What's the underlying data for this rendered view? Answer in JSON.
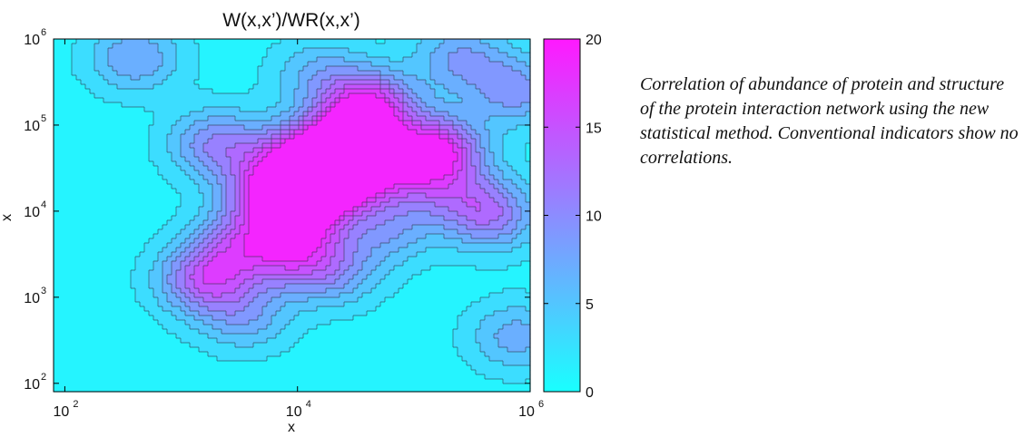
{
  "chart_data": {
    "type": "heatmap",
    "style": "filled contour",
    "title": "W(x,x’)/WR(x,x’)",
    "xlabel": "x",
    "ylabel": "x",
    "x_scale": "log",
    "y_scale": "log",
    "xlim": [
      80,
      1000000
    ],
    "ylim": [
      80,
      1000000
    ],
    "x_ticks": [
      {
        "value": 100,
        "label": "10",
        "exp": "2"
      },
      {
        "value": 10000,
        "label": "10",
        "exp": "4"
      },
      {
        "value": 1000000,
        "label": "10",
        "exp": "6"
      }
    ],
    "y_ticks": [
      {
        "value": 100,
        "label": "10",
        "exp": "2"
      },
      {
        "value": 1000,
        "label": "10",
        "exp": "3"
      },
      {
        "value": 10000,
        "label": "10",
        "exp": "4"
      },
      {
        "value": 100000,
        "label": "10",
        "exp": "5"
      },
      {
        "value": 1000000,
        "label": "10",
        "exp": "6"
      }
    ],
    "colorbar": {
      "range": [
        0,
        20
      ],
      "ticks": [
        {
          "value": 0,
          "label": "0"
        },
        {
          "value": 5,
          "label": "5"
        },
        {
          "value": 10,
          "label": "10"
        },
        {
          "value": 15,
          "label": "15"
        },
        {
          "value": 20,
          "label": "20"
        }
      ],
      "color_low": "#19ffff",
      "color_high": "#ff19ff"
    },
    "background_level": 1,
    "contour_levels": [
      2,
      4,
      6,
      8,
      10,
      12,
      14,
      16,
      18
    ],
    "peaks": [
      {
        "x": 2000,
        "y": 60000,
        "value": 9
      },
      {
        "x": 6000,
        "y": 16000,
        "value": 13
      },
      {
        "x": 1600,
        "y": 1600,
        "value": 12
      },
      {
        "x": 22000,
        "y": 50000,
        "value": 20
      },
      {
        "x": 30000,
        "y": 32000,
        "value": 19
      },
      {
        "x": 40000,
        "y": 160000,
        "value": 18
      },
      {
        "x": 150000,
        "y": 50000,
        "value": 18
      },
      {
        "x": 10000,
        "y": 8000,
        "value": 14
      },
      {
        "x": 8500,
        "y": 3000,
        "value": 9
      },
      {
        "x": 3500,
        "y": 600,
        "value": 6
      },
      {
        "x": 8000,
        "y": 40000,
        "value": 9
      },
      {
        "x": 400,
        "y": 600000,
        "value": 7
      },
      {
        "x": 250000,
        "y": 600000,
        "value": 7
      },
      {
        "x": 750000,
        "y": 250000,
        "value": 8
      },
      {
        "x": 16000,
        "y": 20000,
        "value": 12
      },
      {
        "x": 350000,
        "y": 12000,
        "value": 7
      },
      {
        "x": 120000,
        "y": 20000,
        "value": 6
      },
      {
        "x": 750000,
        "y": 350,
        "value": 6
      },
      {
        "x": 15000,
        "y": 400000,
        "value": 5
      },
      {
        "x": 3000,
        "y": 4000,
        "value": 9
      },
      {
        "x": 20000,
        "y": 2000,
        "value": 7
      },
      {
        "x": 60000,
        "y": 6000,
        "value": 6
      },
      {
        "x": 500000,
        "y": 8000,
        "value": 6
      }
    ]
  },
  "caption": "Correlation of abundance of protein and structure of the protein interaction network using the new statistical method. Conventional indicators show no correlations."
}
